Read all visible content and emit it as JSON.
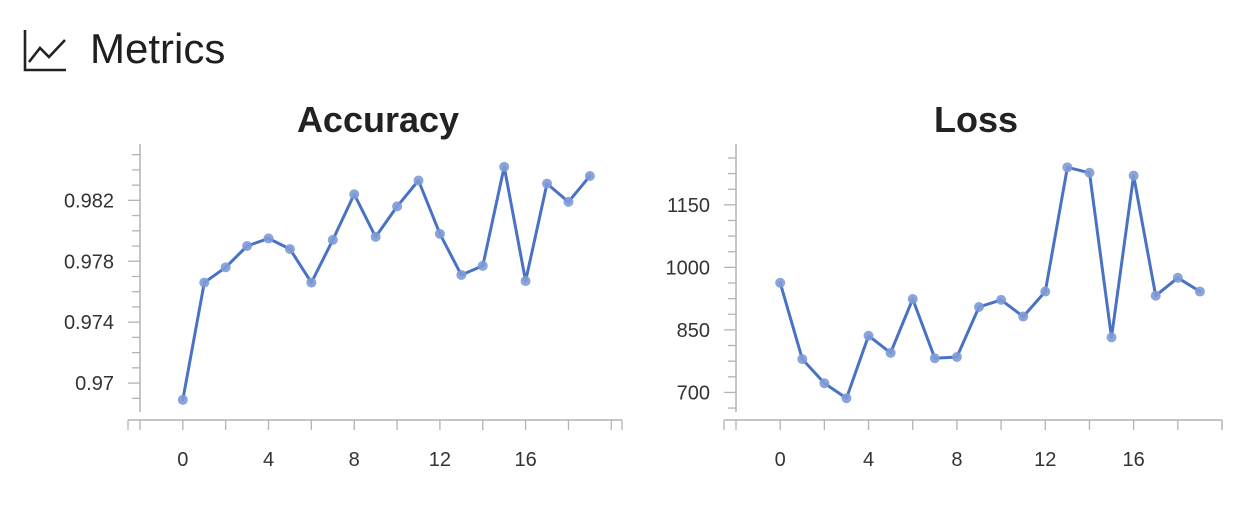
{
  "header": {
    "title": "Metrics",
    "icon": "line-chart-icon"
  },
  "colors": {
    "line": "#4a72c4",
    "marker": "#7e9bd6",
    "axis": "#b3b3b3",
    "tick_label": "#333333",
    "title": "#222222"
  },
  "chart_data": [
    {
      "type": "line",
      "title": "Accuracy",
      "x": [
        0,
        1,
        2,
        3,
        4,
        5,
        6,
        7,
        8,
        9,
        10,
        11,
        12,
        13,
        14,
        15,
        16,
        17,
        18,
        19
      ],
      "series": [
        {
          "values": [
            0.9689,
            0.9766,
            0.9776,
            0.979,
            0.9795,
            0.9788,
            0.9766,
            0.9794,
            0.9824,
            0.9796,
            0.9816,
            0.9833,
            0.9798,
            0.9771,
            0.9777,
            0.9842,
            0.9767,
            0.9831,
            0.9819,
            0.9836
          ]
        }
      ],
      "xticks": [
        0,
        4,
        8,
        12,
        16
      ],
      "xtick_labels": [
        "0",
        "4",
        "8",
        "12",
        "16"
      ],
      "yticks": [
        0.97,
        0.974,
        0.978,
        0.982
      ],
      "ytick_labels": [
        "0.97",
        "0.974",
        "0.978",
        "0.982"
      ],
      "xlim": [
        -2,
        20.5
      ],
      "ylim": [
        0.9681,
        0.9857
      ],
      "grid": false,
      "xlabel": "",
      "ylabel": ""
    },
    {
      "type": "line",
      "title": "Loss",
      "x": [
        0,
        1,
        2,
        3,
        4,
        5,
        6,
        7,
        8,
        9,
        10,
        11,
        12,
        13,
        14,
        15,
        16,
        17,
        18,
        19
      ],
      "series": [
        {
          "values": [
            963,
            780,
            722,
            686,
            836,
            795,
            924,
            782,
            785,
            905,
            922,
            882,
            942,
            1240,
            1227,
            832,
            1220,
            932,
            975,
            942
          ]
        }
      ],
      "xticks": [
        0,
        4,
        8,
        12,
        16
      ],
      "xtick_labels": [
        "0",
        "4",
        "8",
        "12",
        "16"
      ],
      "yticks": [
        700,
        850,
        1000,
        1150
      ],
      "ytick_labels": [
        "700",
        "850",
        "1000",
        "1150"
      ],
      "xlim": [
        -2,
        20
      ],
      "ylim": [
        653,
        1296
      ],
      "grid": false,
      "xlabel": "",
      "ylabel": ""
    }
  ]
}
